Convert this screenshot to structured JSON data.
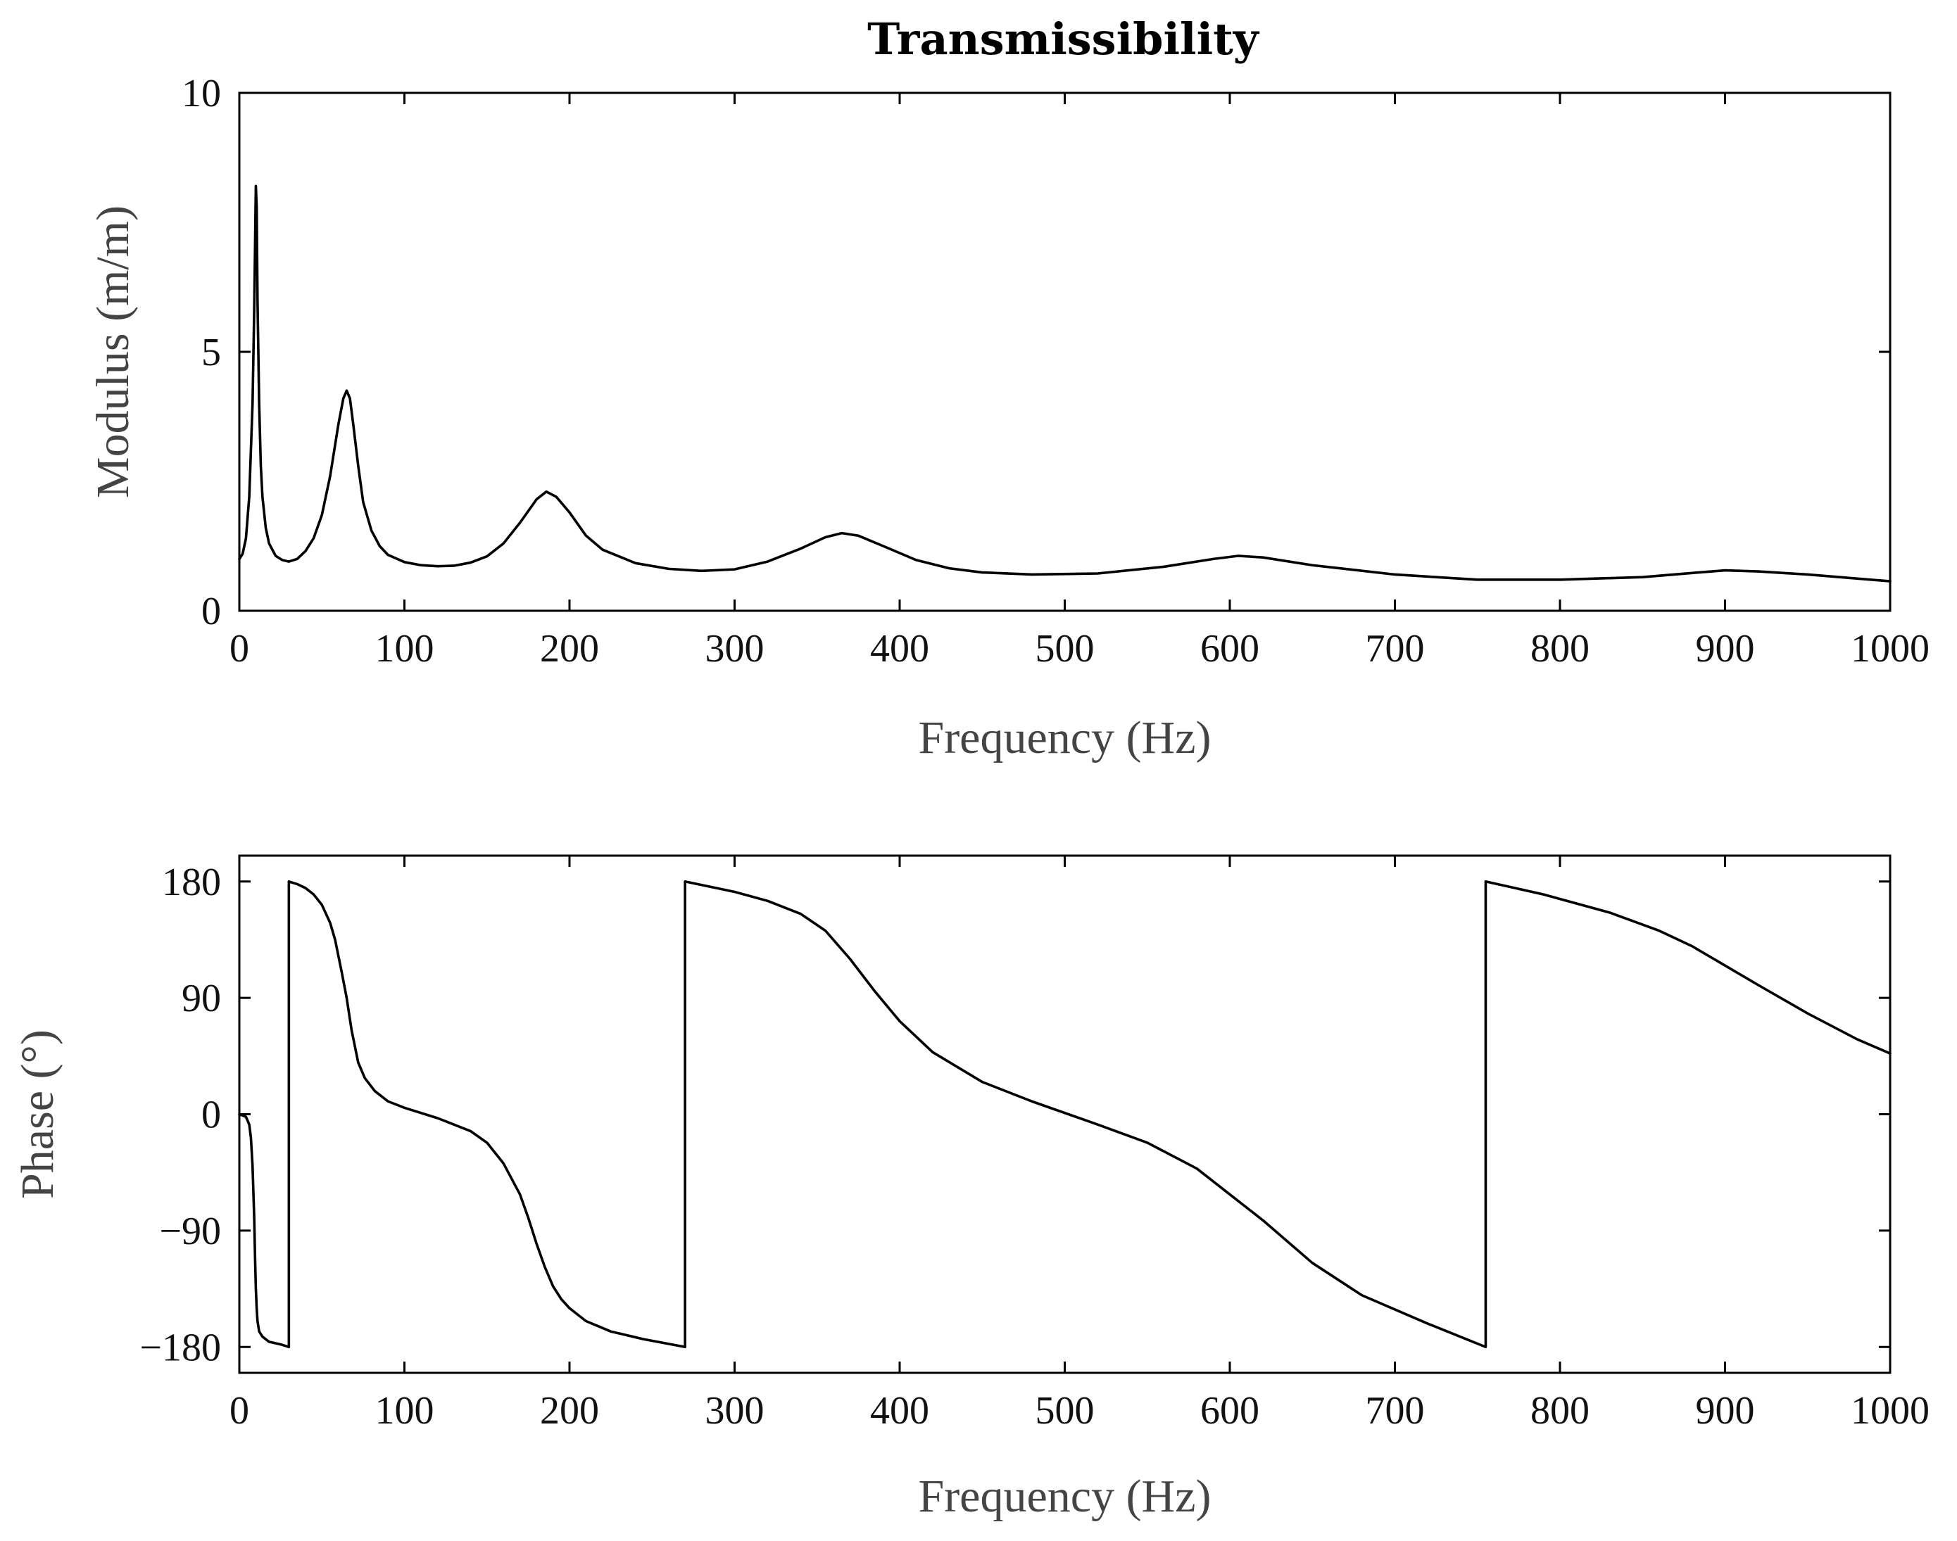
{
  "chart_data": [
    {
      "type": "line",
      "title": "Transmissibility",
      "xlabel": "Frequency (Hz)",
      "ylabel": "Modulus (m/m)",
      "xlim": [
        0,
        1000
      ],
      "ylim": [
        0,
        10
      ],
      "xticks": [
        0,
        100,
        200,
        300,
        400,
        500,
        600,
        700,
        800,
        900,
        1000
      ],
      "xtick_labels": [
        "0",
        "100",
        "200",
        "300",
        "400",
        "500",
        "600",
        "700",
        "800",
        "900",
        "1000"
      ],
      "yticks": [
        0,
        5,
        10
      ],
      "ytick_labels": [
        "0",
        "5",
        "10"
      ],
      "grid": false,
      "series": [
        {
          "name": "Modulus",
          "x": [
            0,
            2,
            4,
            6,
            8,
            9,
            10,
            10.5,
            11,
            12,
            13,
            14,
            16,
            18,
            22,
            26,
            30,
            35,
            40,
            45,
            50,
            55,
            60,
            63,
            65,
            67,
            69,
            72,
            75,
            80,
            85,
            90,
            100,
            110,
            120,
            130,
            140,
            150,
            160,
            170,
            180,
            186,
            192,
            200,
            210,
            220,
            240,
            260,
            280,
            300,
            320,
            340,
            355,
            365,
            375,
            390,
            410,
            430,
            450,
            480,
            520,
            560,
            590,
            605,
            620,
            650,
            700,
            750,
            800,
            850,
            880,
            900,
            920,
            950,
            1000
          ],
          "y": [
            1.0,
            1.1,
            1.4,
            2.2,
            4.0,
            5.8,
            8.2,
            7.8,
            6.0,
            4.0,
            2.8,
            2.2,
            1.6,
            1.3,
            1.06,
            0.98,
            0.95,
            1.0,
            1.15,
            1.4,
            1.85,
            2.6,
            3.6,
            4.1,
            4.25,
            4.1,
            3.6,
            2.8,
            2.1,
            1.55,
            1.25,
            1.08,
            0.94,
            0.88,
            0.86,
            0.87,
            0.93,
            1.05,
            1.3,
            1.7,
            2.15,
            2.3,
            2.2,
            1.9,
            1.45,
            1.18,
            0.92,
            0.81,
            0.77,
            0.8,
            0.95,
            1.2,
            1.42,
            1.5,
            1.45,
            1.25,
            0.98,
            0.82,
            0.74,
            0.7,
            0.72,
            0.85,
            1.0,
            1.06,
            1.03,
            0.88,
            0.7,
            0.6,
            0.6,
            0.65,
            0.73,
            0.78,
            0.76,
            0.7,
            0.57
          ]
        }
      ]
    },
    {
      "type": "line",
      "title": "",
      "xlabel": "Frequency (Hz)",
      "ylabel": "Phase (°)",
      "xlim": [
        0,
        1000
      ],
      "ylim": [
        -200,
        200
      ],
      "xticks": [
        0,
        100,
        200,
        300,
        400,
        500,
        600,
        700,
        800,
        900,
        1000
      ],
      "xtick_labels": [
        "0",
        "100",
        "200",
        "300",
        "400",
        "500",
        "600",
        "700",
        "800",
        "900",
        "1000"
      ],
      "yticks": [
        180,
        90,
        0,
        -90,
        -180
      ],
      "ytick_labels": [
        "180",
        "90",
        "0",
        "−90",
        "−180"
      ],
      "grid": false,
      "series": [
        {
          "name": "Phase",
          "x": [
            0,
            4,
            6,
            7,
            8,
            9,
            9.5,
            10,
            10.5,
            11,
            12,
            14,
            18,
            25,
            30,
            30,
            35,
            40,
            45,
            50,
            55,
            58,
            62,
            65,
            68,
            72,
            76,
            82,
            90,
            100,
            120,
            140,
            150,
            160,
            170,
            175,
            180,
            185,
            190,
            195,
            200,
            210,
            225,
            245,
            270,
            270,
            300,
            320,
            340,
            355,
            370,
            385,
            400,
            420,
            450,
            480,
            520,
            550,
            580,
            600,
            620,
            650,
            680,
            720,
            755,
            755,
            790,
            830,
            860,
            880,
            900,
            920,
            950,
            980,
            1000
          ],
          "y": [
            0,
            -2,
            -8,
            -18,
            -40,
            -80,
            -110,
            -135,
            -150,
            -160,
            -168,
            -172,
            -176,
            -178,
            -180,
            180,
            178,
            175,
            170,
            162,
            148,
            135,
            110,
            90,
            65,
            40,
            28,
            18,
            10,
            5,
            -3,
            -13,
            -22,
            -38,
            -62,
            -80,
            -100,
            -118,
            -133,
            -143,
            -150,
            -160,
            -168,
            -174,
            -180,
            180,
            172,
            165,
            155,
            142,
            120,
            95,
            72,
            48,
            25,
            10,
            -8,
            -22,
            -42,
            -62,
            -82,
            -115,
            -140,
            -162,
            -180,
            180,
            170,
            156,
            142,
            130,
            115,
            100,
            78,
            58,
            47
          ]
        }
      ]
    }
  ]
}
